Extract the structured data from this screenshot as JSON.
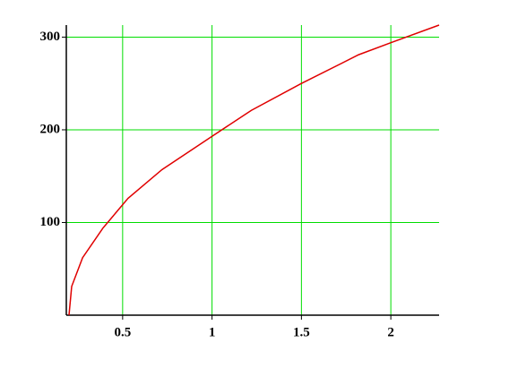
{
  "chart_data": {
    "type": "line",
    "x": [
      0.2,
      0.215,
      0.276,
      0.39,
      0.53,
      0.72,
      1.0,
      1.22,
      1.5,
      1.82,
      2.0,
      2.27
    ],
    "series": [
      {
        "color": "#e00000",
        "values": [
          0,
          31,
          62,
          94,
          126,
          157,
          193,
          221,
          250,
          281,
          294,
          313
        ]
      }
    ],
    "xlim": [
      0.185,
      2.27
    ],
    "ylim": [
      0,
      313
    ],
    "xticks": [
      0.5,
      1,
      1.5,
      2
    ],
    "yticks": [
      100,
      200,
      300
    ],
    "grid": true,
    "grid_color": "#00dd00"
  }
}
